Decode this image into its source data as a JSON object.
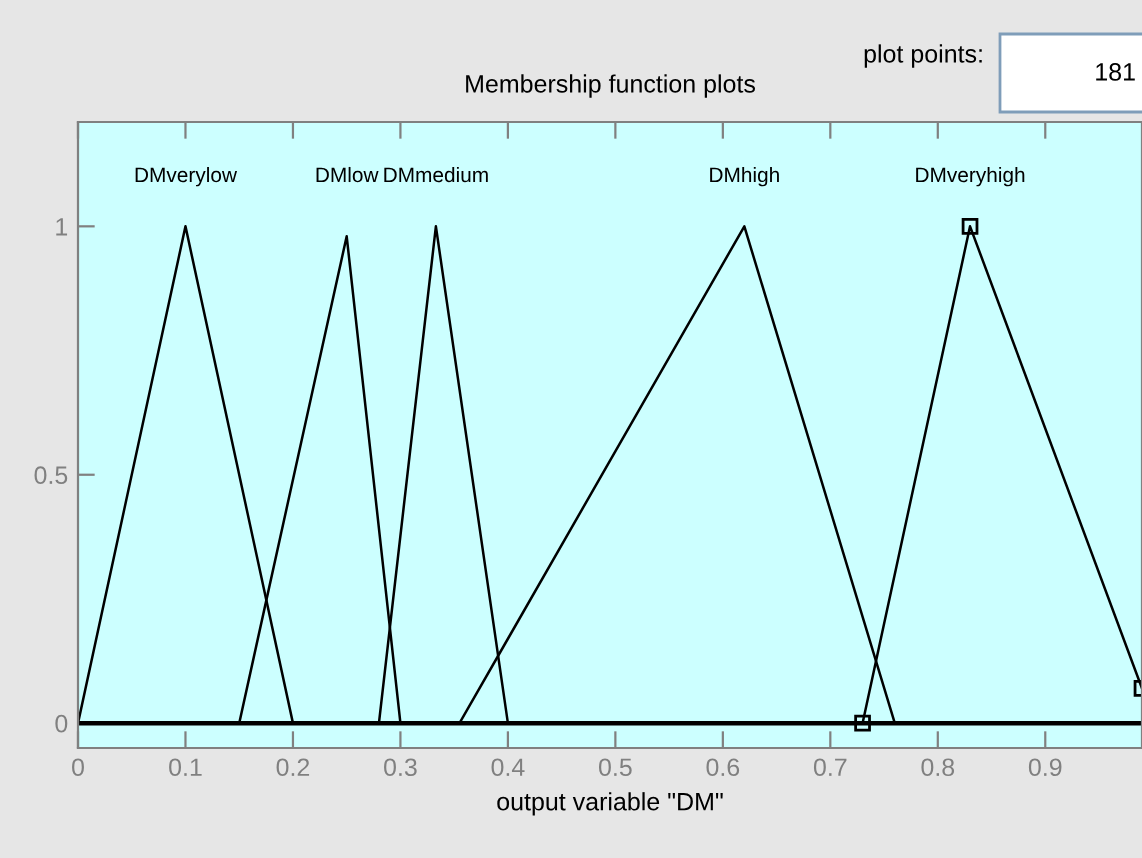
{
  "chart_data": {
    "type": "line",
    "title": "Membership function plots",
    "xlabel": "output variable \"DM\"",
    "annotations": [
      "plot points:",
      "181"
    ],
    "series": [
      {
        "name": "DMverylow",
        "color": "#000000",
        "x": [
          0,
          0.1,
          0.2
        ],
        "values": [
          0,
          1,
          0
        ]
      },
      {
        "name": "DMlow",
        "color": "#000000",
        "x": [
          0.15,
          0.25,
          0.3
        ],
        "values": [
          0,
          0.98,
          0
        ]
      },
      {
        "name": "DMmedium",
        "color": "#000000",
        "x": [
          0.28,
          0.333,
          0.4
        ],
        "values": [
          0,
          1,
          0
        ]
      },
      {
        "name": "DMhigh",
        "color": "#000000",
        "x": [
          0.355,
          0.62,
          0.76
        ],
        "values": [
          0,
          1,
          0
        ]
      },
      {
        "name": "DMveryhigh",
        "color": "#000000",
        "x": [
          0.73,
          0.83,
          0.99
        ],
        "values": [
          0,
          1,
          0.07
        ],
        "marker": "square"
      }
    ],
    "ref_lines": [
      {
        "axis": "y",
        "value": 0,
        "color": "#000000"
      }
    ],
    "xlim": [
      0,
      0.99
    ],
    "xticks": [
      0,
      0.1,
      0.2,
      0.3,
      0.4,
      0.5,
      0.6,
      0.7,
      0.8,
      0.9
    ],
    "ylim": [
      -0.05,
      1.21
    ],
    "yticks": [
      0,
      0.5,
      1
    ],
    "grid": false,
    "legend": false
  }
}
